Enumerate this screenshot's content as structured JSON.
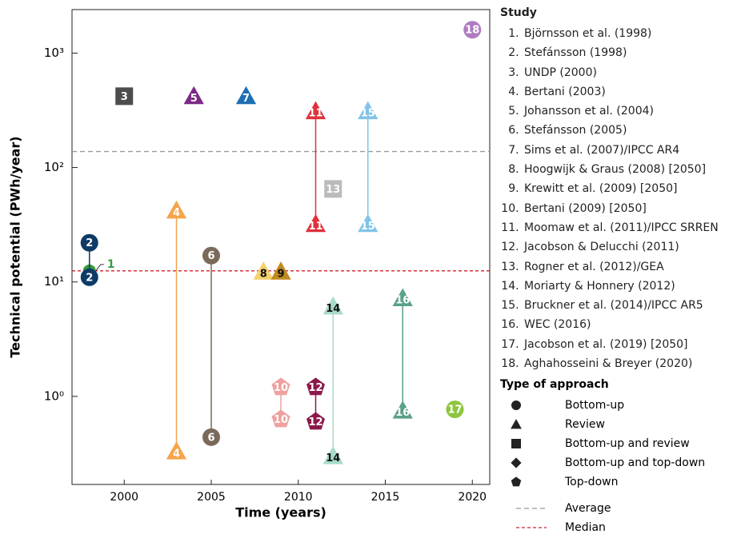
{
  "chart_data": {
    "type": "scatter",
    "x_label": "Time (years)",
    "y_label": "Technical potential (PWh/year)",
    "xlim": [
      1997,
      2021
    ],
    "xticks": [
      2000,
      2005,
      2010,
      2015,
      2020
    ],
    "ylim": [
      0.17,
      2400
    ],
    "log_y": true,
    "yticks": [
      {
        "value": 1,
        "label": "10⁰"
      },
      {
        "value": 10,
        "label": "10¹"
      },
      {
        "value": 100,
        "label": "10²"
      },
      {
        "value": 1000,
        "label": "10³"
      }
    ],
    "legend_title": "Study",
    "series": [
      {
        "id": 1,
        "name": "Björnsson et al. (1998)",
        "marker": "circle",
        "color": "#3a9a3a",
        "text_color": "#3a9a3a",
        "x": [
          1998
        ],
        "values": [
          12.5
        ]
      },
      {
        "id": 2,
        "name": "Stefánsson  (1998)",
        "marker": "circle",
        "color": "#0d3b66",
        "text_color": "#ffffff",
        "x": [
          1998,
          1998
        ],
        "values": [
          22,
          11
        ]
      },
      {
        "id": 3,
        "name": "UNDP (2000)",
        "marker": "square",
        "color": "#4d4d4d",
        "text_color": "#ffffff",
        "x": [
          2000
        ],
        "values": [
          420
        ]
      },
      {
        "id": 4,
        "name": "Bertani (2003)",
        "marker": "triangle",
        "color": "#f4a54a",
        "text_color": "#ffffff",
        "x": [
          2003,
          2003
        ],
        "values": [
          42,
          0.33
        ]
      },
      {
        "id": 5,
        "name": "Johansson et al. (2004)",
        "marker": "triangle",
        "color": "#7b2a86",
        "text_color": "#ffffff",
        "x": [
          2004
        ],
        "values": [
          420
        ]
      },
      {
        "id": 6,
        "name": "Stefánsson  (2005)",
        "marker": "circle",
        "color": "#7a6a5a",
        "text_color": "#ffffff",
        "x": [
          2005,
          2005
        ],
        "values": [
          17,
          0.44
        ]
      },
      {
        "id": 7,
        "name": "Sims et al. (2007)/IPCC AR4",
        "marker": "triangle",
        "color": "#1f6fb5",
        "text_color": "#ffffff",
        "x": [
          2007
        ],
        "values": [
          420
        ]
      },
      {
        "id": 8,
        "name": "Hoogwijk & Graus (2008) [2050]",
        "marker": "triangle",
        "color": "#f5d36b",
        "text_color": "#111111",
        "x": [
          2008
        ],
        "values": [
          12.3
        ]
      },
      {
        "id": 9,
        "name": "Krewitt et al. (2009) [2050]",
        "marker": "triangle",
        "color": "#c08a1e",
        "text_color": "#111111",
        "x": [
          2009
        ],
        "values": [
          12.3
        ]
      },
      {
        "id": 10,
        "name": "Bertani (2009) [2050]",
        "marker": "pentagon",
        "color": "#f0a0a0",
        "text_color": "#ffffff",
        "x": [
          2009,
          2009
        ],
        "values": [
          1.2,
          0.63
        ]
      },
      {
        "id": 11,
        "name": "Moomaw et al. (2011)/IPCC SRREN",
        "marker": "triangle",
        "color": "#e0303a",
        "text_color": "#ffffff",
        "x": [
          2011,
          2011
        ],
        "values": [
          310,
          32
        ]
      },
      {
        "id": 12,
        "name": "Jacobson & Delucchi (2011)",
        "marker": "pentagon",
        "color": "#8b1a4a",
        "text_color": "#ffffff",
        "x": [
          2011,
          2011
        ],
        "values": [
          1.2,
          0.6
        ]
      },
      {
        "id": 13,
        "name": "Rogner et al. (2012)/GEA",
        "marker": "square",
        "color": "#bbbbbb",
        "text_color": "#ffffff",
        "x": [
          2012
        ],
        "values": [
          65
        ]
      },
      {
        "id": 14,
        "name": "Moriarty & Honnery (2012)",
        "marker": "triangle",
        "color": "#a8dcc8",
        "text_color": "#111111",
        "x": [
          2012,
          2012
        ],
        "values": [
          6.1,
          0.3
        ]
      },
      {
        "id": 15,
        "name": "Bruckner et al. (2014)/IPCC AR5",
        "marker": "triangle",
        "color": "#7fc4e8",
        "text_color": "#ffffff",
        "x": [
          2014,
          2014
        ],
        "values": [
          310,
          32
        ]
      },
      {
        "id": 16,
        "name": "WEC (2016)",
        "marker": "triangle",
        "color": "#5aa08a",
        "text_color": "#ffffff",
        "x": [
          2016,
          2016
        ],
        "values": [
          7.2,
          0.75
        ]
      },
      {
        "id": 17,
        "name": "Jacobson et al. (2019) [2050]",
        "marker": "circle",
        "color": "#8dc63f",
        "text_color": "#ffffff",
        "x": [
          2019
        ],
        "values": [
          0.77
        ]
      },
      {
        "id": 18,
        "name": "Aghahosseini & Breyer (2020)",
        "marker": "circle",
        "color": "#b07cc0",
        "text_color": "#ffffff",
        "x": [
          2020
        ],
        "values": [
          1600
        ]
      }
    ],
    "approach_legend": {
      "title": "Type of approach",
      "items": [
        {
          "name": "Bottom-up",
          "marker": "circle"
        },
        {
          "name": "Review",
          "marker": "triangle"
        },
        {
          "name": "Bottom-up and review",
          "marker": "square"
        },
        {
          "name": "Bottom-up and top-down",
          "marker": "diamond"
        },
        {
          "name": "Top-down",
          "marker": "pentagon"
        }
      ]
    },
    "ref_lines": [
      {
        "name": "Average",
        "value": 138,
        "color": "#999999",
        "dash": "6 4"
      },
      {
        "name": "Median",
        "value": 12.5,
        "color": "#d0202a",
        "dash": "4 3"
      }
    ]
  }
}
